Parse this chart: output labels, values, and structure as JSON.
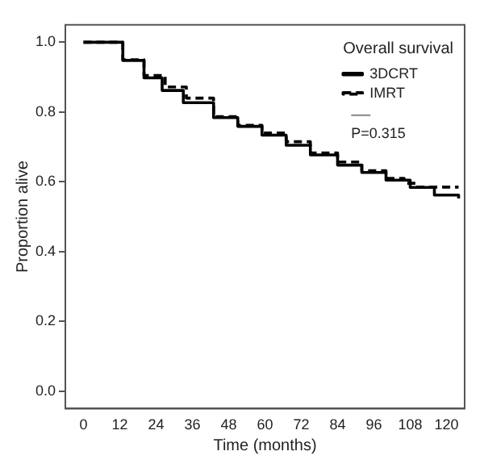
{
  "chart_data": {
    "type": "step",
    "xlabel": "Time (months)",
    "ylabel": "Proportion alive",
    "legend_title": "Overall survival",
    "legend": "top right",
    "grid": false,
    "xlim": [
      -6,
      126
    ],
    "xticks": [
      0,
      12,
      24,
      36,
      48,
      60,
      72,
      84,
      96,
      108,
      120
    ],
    "ylim": [
      -0.05,
      1.05
    ],
    "yticks": [
      {
        "value": 0,
        "label": "0.0"
      },
      {
        "value": 0.2,
        "label": "0.2"
      },
      {
        "value": 0.4,
        "label": "0.4"
      },
      {
        "value": 0.6,
        "label": "0.6"
      },
      {
        "value": 0.8,
        "label": "0.8"
      },
      {
        "value": 1,
        "label": "1.0"
      }
    ],
    "series": [
      {
        "name": "3DCRT",
        "color": "#000000",
        "line_style": "solid",
        "x": [
          0,
          6,
          13,
          20,
          26,
          33,
          43,
          51,
          59,
          67,
          75,
          84,
          92,
          100,
          108,
          116,
          124
        ],
        "values": [
          1,
          1,
          0.948,
          0.898,
          0.862,
          0.827,
          0.784,
          0.759,
          0.734,
          0.705,
          0.677,
          0.648,
          0.627,
          0.605,
          0.584,
          0.562,
          0.552
        ]
      },
      {
        "name": "IMRT",
        "color": "#000000",
        "line_style": "dashed",
        "x": [
          0,
          6,
          13,
          20,
          27,
          34,
          43,
          51,
          59,
          67,
          75,
          84,
          92,
          100,
          106,
          110,
          124
        ],
        "values": [
          1,
          1,
          0.95,
          0.905,
          0.872,
          0.84,
          0.787,
          0.762,
          0.74,
          0.715,
          0.683,
          0.657,
          0.632,
          0.61,
          0.596,
          0.585,
          0.585
        ]
      }
    ],
    "annotations": [
      "P=0.315"
    ]
  }
}
